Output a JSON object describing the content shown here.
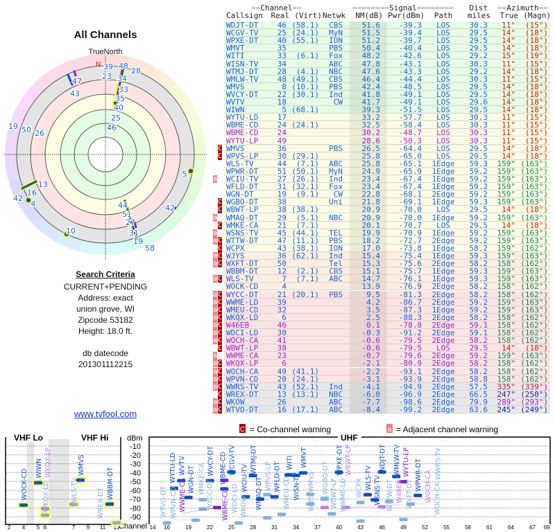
{
  "left": {
    "title": "All Channels",
    "north_label": "TrueNorth",
    "north_marker": "N",
    "polar_labels": [
      "39",
      "48",
      "28",
      "23",
      "47",
      "43",
      "34",
      "33",
      "35",
      "40",
      "25",
      "46",
      "19",
      "50",
      "26",
      "5",
      "13",
      "16",
      "42",
      "4",
      "44",
      "42",
      "51",
      "27",
      "31",
      "19",
      "58",
      "10"
    ],
    "criteria_title": "Search Criteria",
    "criteria_lines": [
      "CURRENT+PENDING",
      "Address: exact",
      "union grove, WI",
      "Zipcode 53182",
      "Height: 18.0 ft."
    ],
    "db_label": "db datecode",
    "db_code": "201301112215",
    "link": "www.tvfool.com"
  },
  "table": {
    "groups": {
      "channel": "Channel",
      "signal": "Signal",
      "dist": "Dist",
      "azimuth": "Azimuth"
    },
    "columns": [
      "Callsign",
      "Real",
      "(Virt)",
      "Netwk",
      "NM(dB)",
      "Pwr(dBm)",
      "Path",
      "miles",
      "True",
      "(Magn)"
    ],
    "rows": [
      [
        "",
        "WDJT-DT",
        "46",
        "(58.1)",
        "CBS",
        "51.6",
        "-39.3",
        "LOS",
        "30.3",
        "11°",
        "(15°)",
        "green",
        false
      ],
      [
        "",
        "WCGV-TV",
        "25",
        "(24.1)",
        "MyN",
        "51.5",
        "-39.4",
        "LOS",
        "29.5",
        "14°",
        "(18°)",
        "green",
        false
      ],
      [
        "",
        "WPXE-DT",
        "40",
        "(55.1)",
        "ION",
        "51.2",
        "-39.7",
        "LOS",
        "29.5",
        "14°",
        "(18°)",
        "green",
        false
      ],
      [
        "",
        "WMVT",
        "35",
        "",
        "PBS",
        "50.4",
        "-40.4",
        "LOS",
        "29.5",
        "14°",
        "(18°)",
        "green",
        false
      ],
      [
        "",
        "WITI",
        "33",
        "(6.1)",
        "Fox",
        "48.2",
        "-42.6",
        "LOS",
        "29.2",
        "15°",
        "(19°)",
        "green",
        false
      ],
      [
        "",
        "WISN-TV",
        "34",
        "",
        "ABC",
        "47.8",
        "-43.1",
        "LOS",
        "30.3",
        "11°",
        "(15°)",
        "green",
        false
      ],
      [
        "",
        "WTMJ-DT",
        "28",
        "(4.1)",
        "NBC",
        "47.6",
        "-43.3",
        "LOS",
        "29.2",
        "14°",
        "(18°)",
        "green",
        false
      ],
      [
        "",
        "WMLW-TV",
        "48",
        "(49.1)",
        "CBS",
        "46.4",
        "-44.4",
        "LOS",
        "30.3",
        "11°",
        "(15°)",
        "green",
        false
      ],
      [
        "",
        "WMVS",
        "8",
        "(10.1)",
        "PBS",
        "42.4",
        "-48.5",
        "LOS",
        "29.5",
        "14°",
        "(18°)",
        "green",
        false
      ],
      [
        "",
        "WVCY-DT",
        "22",
        "(30.1)",
        "Ind",
        "41.8",
        "-49.1",
        "LOS",
        "29.5",
        "14°",
        "(18°)",
        "green",
        false
      ],
      [
        "",
        "WVTV",
        "18",
        "",
        "CW",
        "41.7",
        "-49.1",
        "LOS",
        "29.6",
        "14°",
        "(18°)",
        "green",
        false
      ],
      [
        "",
        "WIWN",
        "5",
        "(68.1)",
        "",
        "39.3",
        "-51.5",
        "LOS",
        "29.5",
        "14°",
        "(18°)",
        "green",
        false
      ],
      [
        "",
        "WYTU-LD",
        "17",
        "",
        "",
        "33.2",
        "-57.7",
        "LOS",
        "30.3",
        "11°",
        "(15°)",
        "yellow",
        false
      ],
      [
        "",
        "WBME-CD",
        "24",
        "(24.1)",
        "",
        "32.5",
        "-58.4",
        "LOS",
        "30.3",
        "11°",
        "(15°)",
        "yellow",
        false
      ],
      [
        "",
        "WBME-CD",
        "24",
        "",
        "",
        "30.2",
        "-48.7",
        "LOS",
        "30.3",
        "11°",
        "(15°)",
        "yellow",
        true
      ],
      [
        "",
        "WYTU-LP",
        "49",
        "",
        "",
        "28.6",
        "-50.3",
        "LOS",
        "30.3",
        "11°",
        "(15°)",
        "yellow",
        true
      ],
      [
        "c",
        "WMVS",
        "36",
        "",
        "PBS",
        "26.5",
        "-64.4",
        "LOS",
        "29.5",
        "14°",
        "(18°)",
        "yellow",
        false
      ],
      [
        "c",
        "WPVS-LP",
        "30",
        "(29.1)",
        "",
        "25.8",
        "-65.0",
        "LOS",
        "29.5",
        "14°",
        "(18°)",
        "yellow",
        false
      ],
      [
        "",
        "WLS-TV",
        "44",
        "(7.1)",
        "ABC",
        "25.8",
        "-65.1",
        "1Edge",
        "59.3",
        "159°",
        "(163°)",
        "yellow",
        false
      ],
      [
        "",
        "WPWR-DT",
        "51",
        "(50.1)",
        "MyN",
        "24.9",
        "-65.9",
        "1Edge",
        "59.2",
        "159°",
        "(163°)",
        "yellow",
        false
      ],
      [
        "a",
        "WCIU-TV",
        "27",
        "(26.1)",
        "Ind",
        "23.4",
        "-67.4",
        "1Edge",
        "59.2",
        "159°",
        "(163°)",
        "yellow",
        false
      ],
      [
        "",
        "WFLD-DT",
        "31",
        "(32.1)",
        "Fox",
        "23.4",
        "-67.4",
        "1Edge",
        "59.2",
        "159°",
        "(163°)",
        "yellow",
        false
      ],
      [
        "",
        "WGN-DT",
        "19",
        "(9.1)",
        "CW",
        "22.8",
        "-68.1",
        "2Edge",
        "59.2",
        "159°",
        "(163°)",
        "yellow",
        false
      ],
      [
        "c",
        "WGBO-DT",
        "38",
        "",
        "Uni",
        "21.8",
        "-69.1",
        "1Edge",
        "59.3",
        "159°",
        "(163°)",
        "yellow",
        false
      ],
      [
        "c",
        "WBWT-LP",
        "38",
        "(38.1)",
        "",
        "20.9",
        "-70.0",
        "LOS",
        "29.5",
        "14°",
        "(18°)",
        "yellow",
        false
      ],
      [
        "a",
        "WMAQ-DT",
        "29",
        "(5.1)",
        "NBC",
        "20.9",
        "-70.0",
        "1Edge",
        "59.2",
        "159°",
        "(163°)",
        "yellow",
        false
      ],
      [
        "c",
        "WMKE-CA",
        "21",
        "(7.1)",
        "",
        "20.1",
        "-70.7",
        "LOS",
        "29.5",
        "14°",
        "(18°)",
        "yellow",
        false
      ],
      [
        "a",
        "WSNS-TV",
        "45",
        "(44.1)",
        "TEL",
        "19.9",
        "-70.9",
        "1Edge",
        "59.2",
        "159°",
        "(163°)",
        "yellow",
        false
      ],
      [
        "ac",
        "WTTW-DT",
        "47",
        "(11.1)",
        "PBS",
        "18.2",
        "-72.7",
        "2Edge",
        "59.2",
        "159°",
        "(163°)",
        "yellow",
        false
      ],
      [
        "c",
        "WCPX",
        "43",
        "(38.1)",
        "ION",
        "17.0",
        "-73.8",
        "1Edge",
        "58.2",
        "159°",
        "(162°)",
        "yellow",
        false
      ],
      [
        "ac",
        "WJYS",
        "36",
        "(62.1)",
        "Ind",
        "15.4",
        "-75.4",
        "1Edge",
        "59.3",
        "159°",
        "(163°)",
        "orange",
        false
      ],
      [
        "ac",
        "WXFT-DT",
        "50",
        "",
        "Tel",
        "15.3",
        "-75.6",
        "2Edge",
        "58.2",
        "158°",
        "(162°)",
        "orange",
        false
      ],
      [
        "",
        "WBBM-DT",
        "12",
        "(2.1)",
        "CBS",
        "15.1",
        "-75.7",
        "1Edge",
        "59.3",
        "159°",
        "(163°)",
        "orange",
        false
      ],
      [
        "ac",
        "WLS-TV",
        "7",
        "(7.1)",
        "ABC",
        "14.7",
        "-76.1",
        "1Edge",
        "59.3",
        "159°",
        "(163°)",
        "orange",
        false
      ],
      [
        "",
        "WOCK-CD",
        "4",
        "",
        "",
        "13.9",
        "-76.9",
        "2Edge",
        "58.2",
        "158°",
        "(162°)",
        "orange",
        false
      ],
      [
        "ac",
        "WYCC-DT",
        "21",
        "(20.1)",
        "PBS",
        "9.5",
        "-81.3",
        "2Edge",
        "58.2",
        "158°",
        "(162°)",
        "pink",
        false
      ],
      [
        "ac",
        "WWME-LD",
        "39",
        "",
        "",
        "4.2",
        "-86.7",
        "2Edge",
        "59.2",
        "159°",
        "(163°)",
        "pink",
        false
      ],
      [
        "ac",
        "WMEU-CD",
        "32",
        "",
        "",
        "3.5",
        "-87.3",
        "1Edge",
        "59.2",
        "159°",
        "(163°)",
        "pink",
        false
      ],
      [
        "ac",
        "WKQX-LD",
        "6",
        "",
        "",
        "2.5",
        "-88.3",
        "2Edge",
        "58.2",
        "158°",
        "(162°)",
        "pink",
        false
      ],
      [
        "ac",
        "W46EB",
        "46",
        "",
        "",
        "0.1",
        "-78.8",
        "2Edge",
        "59.1",
        "158°",
        "(162°)",
        "pink",
        true
      ],
      [
        "ac",
        "WDCI-LD",
        "30",
        "",
        "",
        "-0.3",
        "-91.2",
        "2Edge",
        "59.1",
        "158°",
        "(162°)",
        "pink",
        false
      ],
      [
        "ac",
        "WOCH-CA",
        "41",
        "",
        "",
        "-0.6",
        "-79.5",
        "2Edge",
        "58.2",
        "158°",
        "(162°)",
        "pink",
        true
      ],
      [
        "c",
        "WBWT-LP",
        "38",
        "",
        "",
        "-0.6",
        "-79.5",
        "LOS",
        "29.5",
        "14°",
        "(18°)",
        "pink",
        true
      ],
      [
        "a",
        "WWME-CA",
        "23",
        "",
        "",
        "-0.7",
        "-79.6",
        "2Edge",
        "59.2",
        "159°",
        "(163°)",
        "pink",
        true
      ],
      [
        "ac",
        "WKQX-LP",
        "6",
        "",
        "",
        "-2.1",
        "-80.9",
        "2Edge",
        "58.2",
        "158°",
        "(162°)",
        "pink",
        true
      ],
      [
        "ac",
        "WOCH-CA",
        "49",
        "(41.1)",
        "",
        "-2.2",
        "-93.1",
        "2Edge",
        "58.2",
        "158°",
        "(162°)",
        "pink",
        false
      ],
      [
        "ac",
        "WPVN-CD",
        "20",
        "(24.1)",
        "",
        "-3.1",
        "-93.9",
        "2Edge",
        "58.8",
        "158°",
        "(162°)",
        "pink",
        false
      ],
      [
        "ac",
        "WWRS-TV",
        "43",
        "(52.1)",
        "Ind",
        "-4.1",
        "-94.9",
        "2Edge",
        "57.5",
        "335°",
        "(339°)",
        "gray",
        false
      ],
      [
        "c",
        "WREX-DT",
        "13",
        "(13.1)",
        "NBC",
        "-6.0",
        "-96.9",
        "2Edge",
        "66.5",
        "247°",
        "(250°)",
        "gray",
        false
      ],
      [
        "ac",
        "WKOW",
        "26",
        "",
        "ABC",
        "-7.7",
        "-98.6",
        "2Edge",
        "79.9",
        "289°",
        "(293°)",
        "gray",
        false
      ],
      [
        "ac",
        "WTVO-DT",
        "16",
        "(17.1)",
        "ABC",
        "-8.4",
        "-99.2",
        "2Edge",
        "63.6",
        "245°",
        "(249°)",
        "gray",
        false
      ]
    ]
  },
  "spectrum": {
    "vhf_lo_title": "VHF Lo",
    "vhf_hi_title": "VHF Hi",
    "uhf_title": "UHF",
    "y_unit": "dBm",
    "y_ticks": [
      "-10",
      "-20",
      "-30",
      "-40",
      "-50",
      "-60",
      "-70",
      "-80",
      "-90"
    ],
    "x_label": "Channel",
    "vhf_ticks": [
      "2",
      "4",
      "5",
      "6",
      "7",
      "9",
      "11",
      "13"
    ],
    "uhf_ticks": [
      "14",
      "16",
      "19",
      "22",
      "25",
      "28",
      "31",
      "34",
      "37",
      "40",
      "43",
      "46",
      "49",
      "52",
      "55",
      "58",
      "61",
      "64",
      "67",
      "69"
    ],
    "legend_c_glyph": "C",
    "legend_c": "= Co-channel warning",
    "legend_a_glyph": "a",
    "legend_a": "= Adjacent channel warning"
  },
  "colors": {
    "text_blue": "#1a62d6",
    "text_purple": "#9a22d0",
    "az_local": "#cc2200",
    "az_chicago": "#118855",
    "az_335": "#c0143c",
    "az_289": "#b020b0",
    "az_west": "#2020a0",
    "zone_green": "#e6fbe6",
    "zone_yellow": "#fcfce6",
    "zone_orange": "#fdeee2",
    "zone_pink": "#fce4e4",
    "zone_gray": "#e8e8ea",
    "flag_a": "#f08080",
    "flag_c": "#b00000"
  }
}
